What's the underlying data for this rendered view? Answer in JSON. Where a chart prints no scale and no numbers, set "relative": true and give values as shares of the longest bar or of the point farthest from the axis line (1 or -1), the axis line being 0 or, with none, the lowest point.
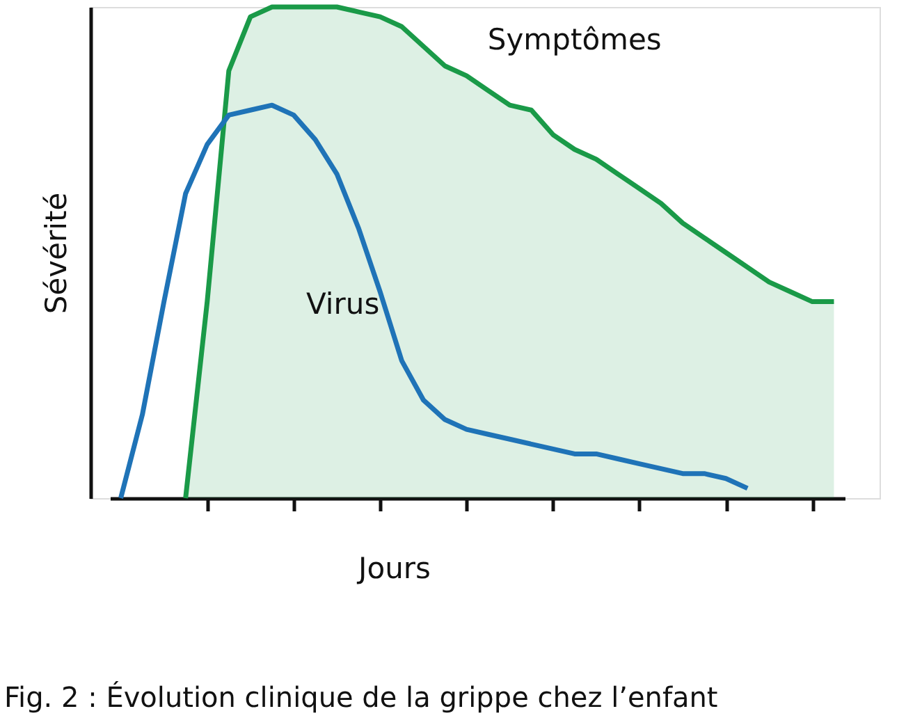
{
  "chart_data": {
    "type": "area",
    "relative": true,
    "xlabel": "Jours",
    "ylabel": "Sévérité",
    "annotations": [
      "Fig. 2 : Évolution clinique de la grippe chez l’enfant"
    ],
    "categories": [
      null,
      null,
      null,
      null,
      null,
      null,
      null,
      null,
      null,
      null,
      null,
      null,
      null,
      null,
      null,
      null,
      null,
      null,
      null,
      null,
      null,
      null,
      null,
      null,
      null,
      null,
      null,
      null,
      null,
      null,
      null,
      null,
      null,
      null
    ],
    "grid": false,
    "series": [
      {
        "name": "Symptômes",
        "color": "#1a9a48",
        "values": [
          null,
          null,
          null,
          0,
          0.4,
          0.87,
          0.98,
          1,
          1,
          1,
          1,
          0.99,
          0.98,
          0.96,
          0.92,
          0.88,
          0.86,
          0.83,
          0.8,
          0.79,
          0.74,
          0.71,
          0.69,
          0.66,
          0.63,
          0.6,
          0.56,
          0.53,
          0.5,
          0.47,
          0.44,
          0.42,
          0.4,
          0.4
        ]
      },
      {
        "name": "Virus",
        "type": "line",
        "color": "#1f73b7",
        "values": [
          0,
          0.17,
          0.4,
          0.62,
          0.72,
          0.78,
          0.79,
          0.8,
          0.78,
          0.73,
          0.66,
          0.55,
          0.42,
          0.28,
          0.2,
          0.16,
          0.14,
          0.13,
          0.12,
          0.11,
          0.1,
          0.09,
          0.09,
          0.08,
          0.07,
          0.06,
          0.05,
          0.05,
          0.04,
          0.02,
          null,
          null,
          null,
          null
        ]
      }
    ]
  }
}
